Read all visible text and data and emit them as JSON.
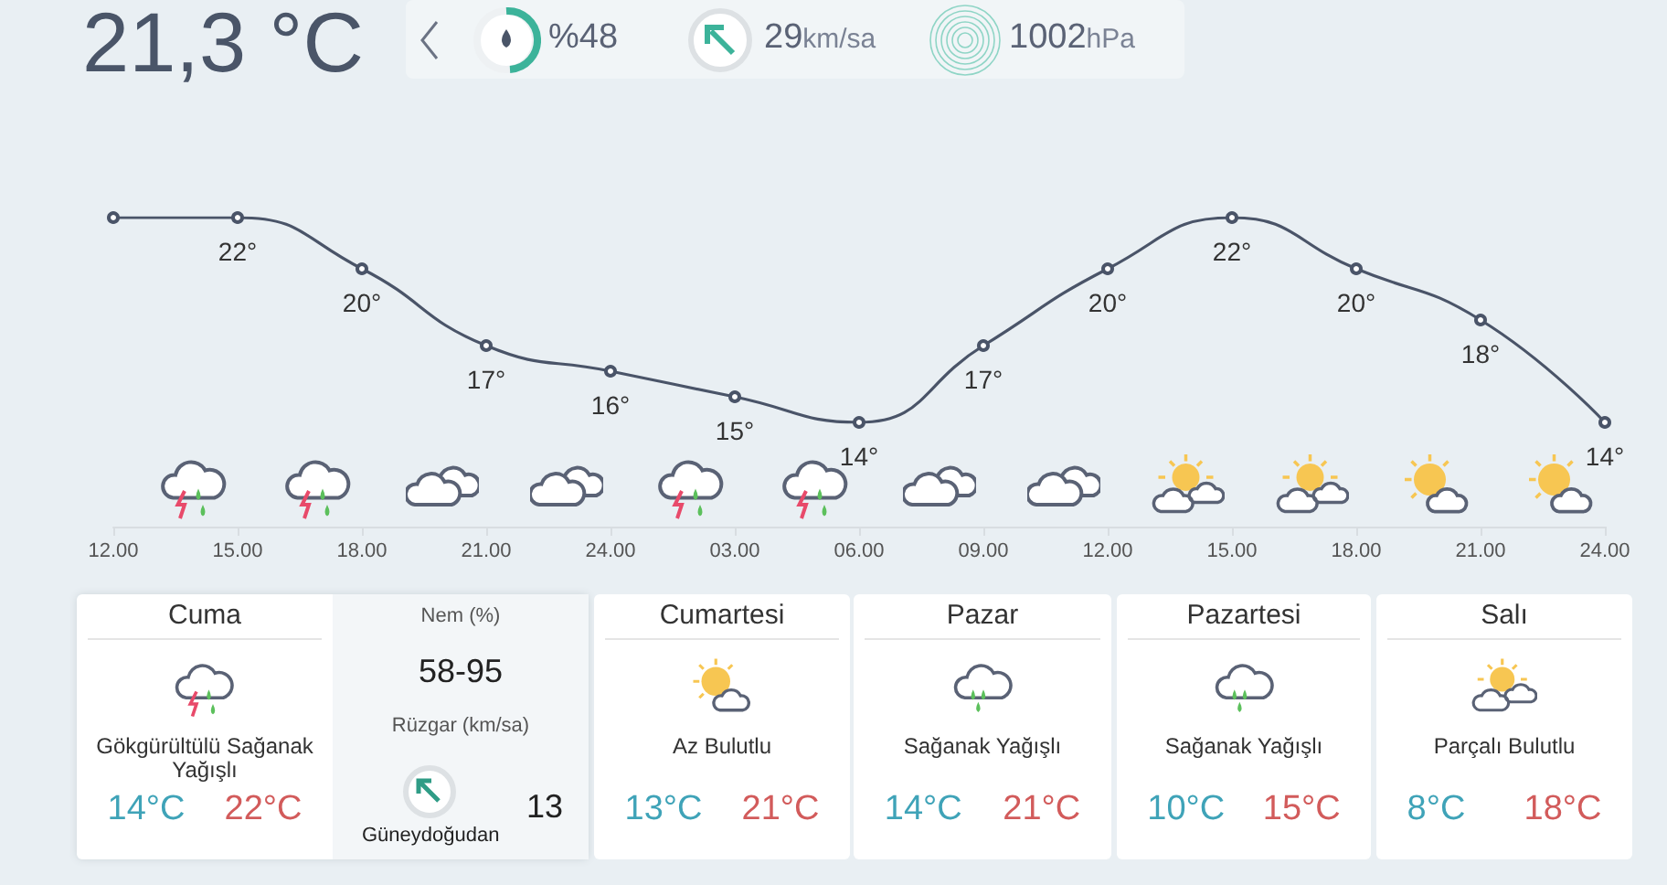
{
  "chart_data": [
    {
      "type": "other",
      "title": "21,3 °C",
      "annotations": [
        "%48",
        "29km/sa",
        "1002hPa"
      ]
    },
    {
      "type": "line",
      "categories": [
        "12.00",
        "15.00",
        "18.00",
        "21.00",
        "24.00",
        "03.00",
        "06.00",
        "09.00",
        "12.00",
        "15.00",
        "18.00",
        "21.00",
        "24.00"
      ],
      "values": [
        22,
        22,
        20,
        17,
        16,
        15,
        14,
        17,
        20,
        22,
        20,
        18,
        14
      ],
      "value_labels": [
        null,
        "22°",
        "20°",
        "17°",
        "16°",
        "15°",
        "14°",
        "17°",
        "20°",
        "22°",
        "20°",
        "18°",
        "14°"
      ],
      "color": "#4a5468",
      "marker": "circle",
      "grid": false,
      "tick_labels": "x"
    },
    {
      "type": "other",
      "title": "Cuma",
      "annotations": [
        "Gökgürültülü Sağanak Yağışlı",
        "14°C",
        "22°C",
        "Nem (%)",
        "58-95",
        "Rüzgar (km/sa)",
        "13",
        "Güneydoğudan"
      ]
    },
    {
      "type": "other",
      "title": "Cumartesi",
      "annotations": [
        "Az Bulutlu",
        "13°C",
        "21°C"
      ]
    },
    {
      "type": "other",
      "title": "Pazar",
      "annotations": [
        "Sağanak Yağışlı",
        "14°C",
        "21°C"
      ]
    },
    {
      "type": "other",
      "title": "Pazartesi",
      "annotations": [
        "Sağanak Yağışlı",
        "10°C",
        "15°C"
      ]
    },
    {
      "type": "other",
      "title": "Salı",
      "annotations": [
        "Parçalı Bulutlu",
        "8°C",
        "18°C"
      ]
    }
  ]
}
